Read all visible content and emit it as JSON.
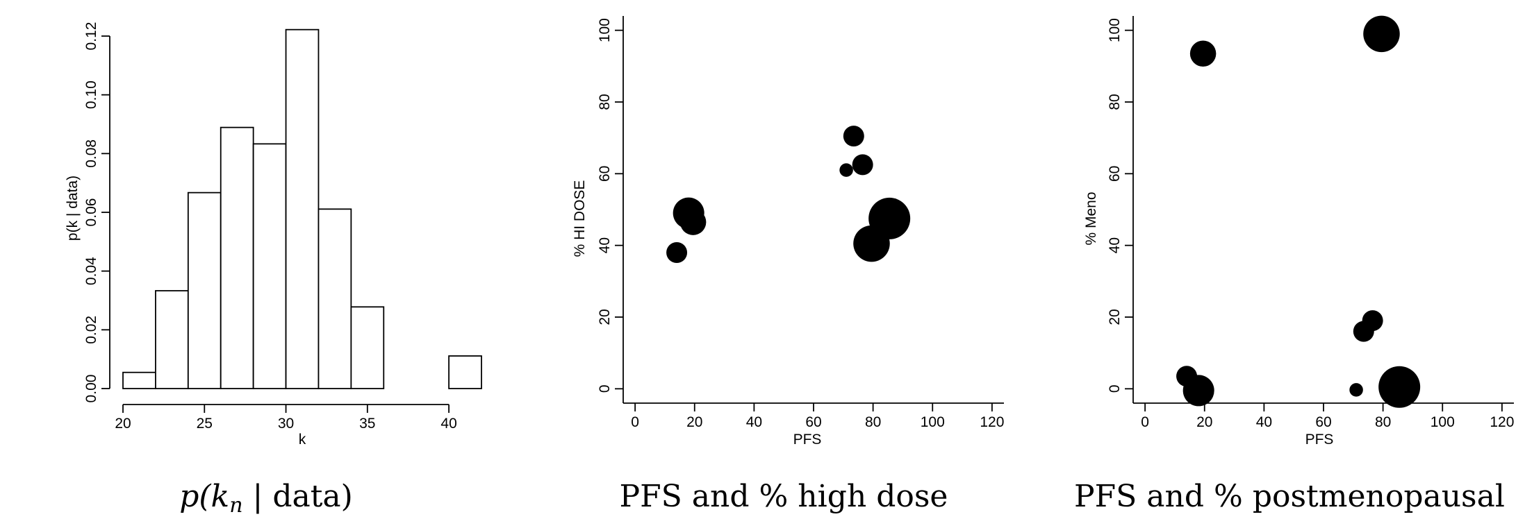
{
  "chart_data": [
    {
      "type": "bar",
      "subtype": "histogram",
      "caption_math": {
        "p": "p(",
        "k": "k",
        "sub": "n",
        "rest": " | data)"
      },
      "xlabel": "k",
      "ylabel": "p(k | data)",
      "xlim": [
        20,
        42
      ],
      "ylim": [
        0,
        0.12
      ],
      "xticks": [
        "20",
        "25",
        "30",
        "35",
        "40"
      ],
      "yticks": [
        "0.00",
        "0.02",
        "0.04",
        "0.06",
        "0.08",
        "0.10",
        "0.12"
      ],
      "bins": [
        {
          "from": 20,
          "to": 22,
          "value": 0.0055
        },
        {
          "from": 22,
          "to": 24,
          "value": 0.0333
        },
        {
          "from": 24,
          "to": 26,
          "value": 0.0667
        },
        {
          "from": 26,
          "to": 28,
          "value": 0.0889
        },
        {
          "from": 28,
          "to": 30,
          "value": 0.0833
        },
        {
          "from": 30,
          "to": 32,
          "value": 0.1222
        },
        {
          "from": 32,
          "to": 34,
          "value": 0.0611
        },
        {
          "from": 34,
          "to": 36,
          "value": 0.0278
        },
        {
          "from": 36,
          "to": 38,
          "value": 0
        },
        {
          "from": 38,
          "to": 40,
          "value": 0
        },
        {
          "from": 40,
          "to": 42,
          "value": 0.0111
        }
      ]
    },
    {
      "type": "scatter",
      "caption": "PFS and % high dose",
      "xlabel": "PFS",
      "ylabel": "% HI DOSE",
      "xlim": [
        -4,
        124
      ],
      "ylim": [
        -4,
        104
      ],
      "xticks": [
        "0",
        "20",
        "40",
        "60",
        "80",
        "100",
        "120"
      ],
      "yticks": [
        "0",
        "20",
        "40",
        "60",
        "80",
        "100"
      ],
      "points": [
        {
          "x": 14,
          "y": 38,
          "size": 2
        },
        {
          "x": 18,
          "y": 49,
          "size": 3
        },
        {
          "x": 19.5,
          "y": 46.5,
          "size": 2.5
        },
        {
          "x": 71,
          "y": 61,
          "size": 1.3
        },
        {
          "x": 73.5,
          "y": 70.5,
          "size": 2
        },
        {
          "x": 76.5,
          "y": 62.5,
          "size": 2
        },
        {
          "x": 79.5,
          "y": 40.5,
          "size": 3.5
        },
        {
          "x": 85.5,
          "y": 47.5,
          "size": 4
        }
      ]
    },
    {
      "type": "scatter",
      "caption": "PFS and % postmenopausal",
      "xlabel": "PFS",
      "ylabel": "% Meno",
      "xlim": [
        -4,
        124
      ],
      "ylim": [
        -4,
        104
      ],
      "xticks": [
        "0",
        "20",
        "40",
        "60",
        "80",
        "100",
        "120"
      ],
      "yticks": [
        "0",
        "20",
        "40",
        "60",
        "80",
        "100"
      ],
      "points": [
        {
          "x": 14,
          "y": 3.5,
          "size": 2
        },
        {
          "x": 18,
          "y": -0.5,
          "size": 3
        },
        {
          "x": 19.5,
          "y": 93.5,
          "size": 2.5
        },
        {
          "x": 71,
          "y": -0.3,
          "size": 1.3
        },
        {
          "x": 73.5,
          "y": 16,
          "size": 2
        },
        {
          "x": 76.5,
          "y": 19,
          "size": 2
        },
        {
          "x": 79.5,
          "y": 99,
          "size": 3.5
        },
        {
          "x": 85.5,
          "y": 0.5,
          "size": 4
        }
      ]
    }
  ]
}
